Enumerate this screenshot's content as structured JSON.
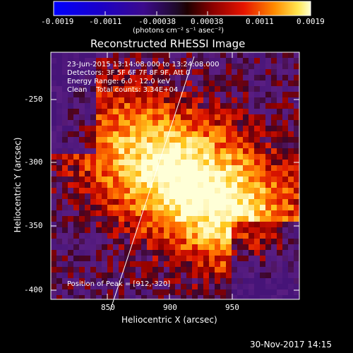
{
  "colorbar": {
    "tick_labels": [
      "-0.0019",
      "-0.0011",
      "-0.00038",
      "0.00038",
      "0.0011",
      "0.0019"
    ],
    "unit_label": "(photons cm⁻² s⁻¹ asec⁻²)"
  },
  "title": "Reconstructed RHESSI Image",
  "info": {
    "line1": "23-Jun-2015 13:14:08.000 to 13:24:08.000",
    "line2": "Detectors: 3F 5F 6F 7F 8F 9F, Att 0",
    "line3": "Energy Range: 6.0 - 12.0 keV",
    "line4": "Clean    Total counts: 3.34E+04"
  },
  "peak_label": "Position of Peak = [912,-320]",
  "axes": {
    "x_label": "Heliocentric X (arcsec)",
    "y_label": "Heliocentric Y (arcsec)",
    "x_ticks": [
      "850",
      "900",
      "950"
    ],
    "y_ticks": [
      "-250",
      "-300",
      "-350",
      "-400"
    ]
  },
  "footer_timestamp": "30-Nov-2017 14:15"
}
